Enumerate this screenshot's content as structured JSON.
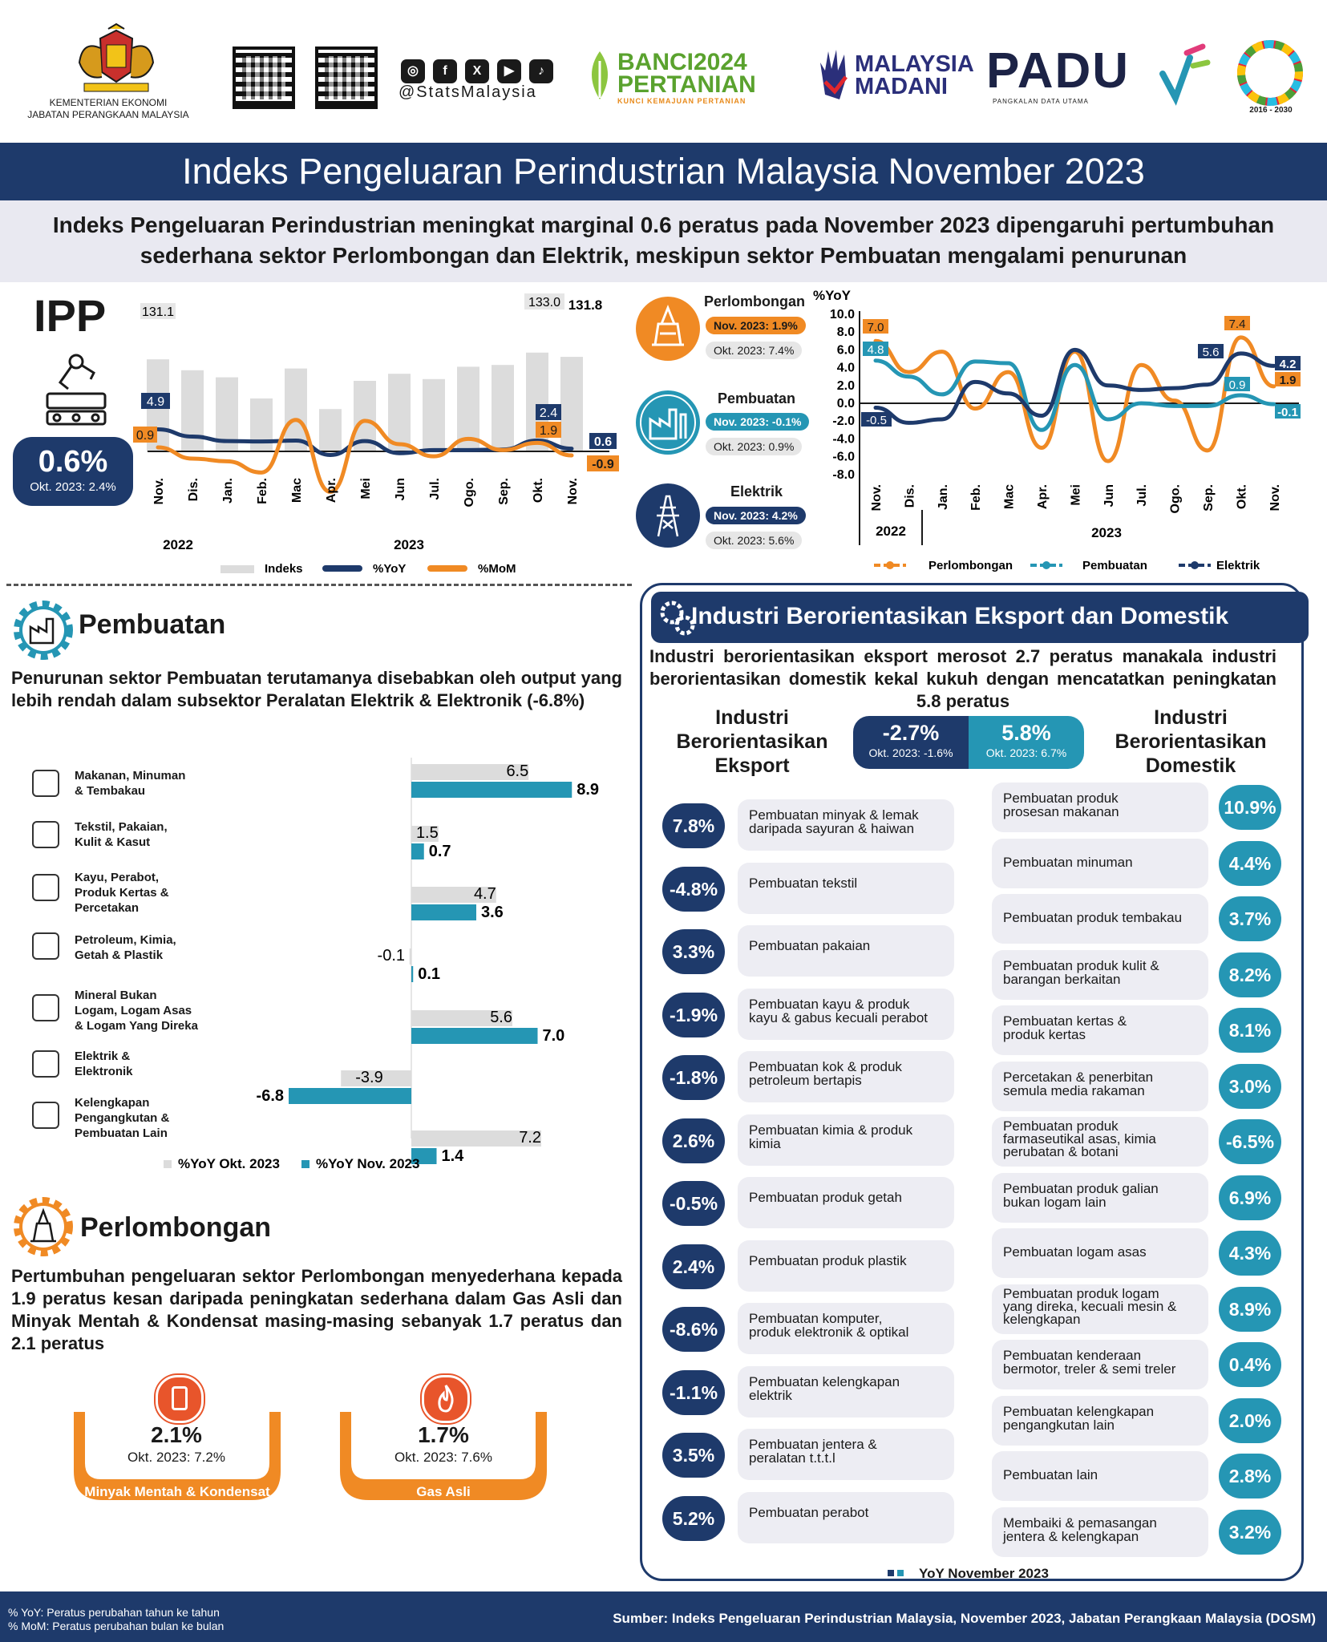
{
  "header": {
    "ministry_line1": "KEMENTERIAN EKONOMI",
    "ministry_line2": "JABATAN PERANGKAAN MALAYSIA",
    "social_handle": "@StatsMalaysia",
    "banci_line1": "BANCI2024",
    "banci_line2": "PERTANIAN",
    "banci_tag": "KUNCI KEMAJUAN PERTANIAN",
    "madani_line1": "MALAYSIA",
    "madani_line2": "MADANI",
    "padu": "PADU",
    "padu_tag": "PANGKALAN DATA UTAMA",
    "sdg_years": "2016 - 2030"
  },
  "title": "Indeks Pengeluaran Perindustrian Malaysia November 2023",
  "subtitle_line1": "Indeks Pengeluaran Perindustrian meningkat marginal 0.6 peratus pada November 2023 dipengaruhi pertumbuhan",
  "subtitle_line2": "sederhana sektor Perlombongan dan Elektrik, meskipun sektor Pembuatan mengalami penurunan",
  "ipp": {
    "label": "IPP",
    "value": "0.6%",
    "prev": "Okt. 2023: 2.4%"
  },
  "sectors": {
    "perlombongan": {
      "name": "Perlombongan",
      "nov": "Nov. 2023: 1.9%",
      "okt": "Okt. 2023: 7.4%"
    },
    "pembuatan": {
      "name": "Pembuatan",
      "nov": "Nov. 2023: -0.1%",
      "okt": "Okt. 2023: 0.9%"
    },
    "elektrik": {
      "name": "Elektrik",
      "nov": "Nov. 2023: 4.2%",
      "okt": "Okt. 2023: 5.6%"
    }
  },
  "colors": {
    "navy": "#1e3a6b",
    "teal": "#2596b4",
    "orange": "#f08a24",
    "grey": "#dcdcdc"
  },
  "chart_data": [
    {
      "type": "bar",
      "title": "IPP",
      "categories": [
        "Nov.",
        "Dis.",
        "Jan.",
        "Feb.",
        "Mac",
        "Apr.",
        "Mei",
        "Jun",
        "Jul.",
        "Ogo.",
        "Sep.",
        "Okt.",
        "Nov."
      ],
      "year_labels": [
        "2022",
        "2023"
      ],
      "series": [
        {
          "name": "Indeks",
          "type": "bar",
          "values": [
            131.1,
            128.0,
            126.0,
            120.0,
            128.5,
            117.0,
            125.0,
            127.0,
            125.5,
            129.0,
            129.5,
            133.0,
            131.8
          ]
        },
        {
          "name": "%YoY",
          "type": "line",
          "values": [
            4.9,
            3.3,
            2.3,
            2.2,
            2.4,
            -0.8,
            2.3,
            -0.4,
            0.3,
            0.3,
            0.4,
            2.4,
            0.6
          ]
        },
        {
          "name": "%MoM",
          "type": "line",
          "values": [
            0.9,
            -1.6,
            -2.2,
            -4.7,
            7.0,
            -9.0,
            6.8,
            1.6,
            -1.1,
            2.8,
            0.3,
            1.9,
            -0.9
          ]
        }
      ],
      "labels": {
        "indeks_first": "131.1",
        "indeks_okt": "133.0",
        "indeks_nov": "131.8",
        "yoy_first": "4.9",
        "yoy_okt": "2.4",
        "yoy_nov": "0.6",
        "mom_first": "0.9",
        "mom_okt": "1.9",
        "mom_nov": "-0.9"
      },
      "legend": [
        "Indeks",
        "%YoY",
        "%MoM"
      ]
    },
    {
      "type": "line",
      "ylabel": "%YoY",
      "ylim": [
        -8.0,
        10.0
      ],
      "yticks": [
        "10.0",
        "8.0",
        "6.0",
        "4.0",
        "2.0",
        "0.0",
        "-2.0",
        "-4.0",
        "-6.0",
        "-8.0"
      ],
      "categories": [
        "Nov.",
        "Dis.",
        "Jan.",
        "Feb.",
        "Mac",
        "Apr.",
        "Mei",
        "Jun",
        "Jul.",
        "Ogo.",
        "Sep.",
        "Okt.",
        "Nov."
      ],
      "year_labels": [
        "2022",
        "2023"
      ],
      "series": [
        {
          "name": "Perlombongan",
          "values": [
            7.0,
            3.5,
            5.8,
            -0.6,
            3.5,
            -5.0,
            5.8,
            -6.5,
            4.3,
            0.3,
            -5.3,
            7.4,
            1.9
          ]
        },
        {
          "name": "Pembuatan",
          "values": [
            4.8,
            3.0,
            1.0,
            4.7,
            4.5,
            -3.0,
            4.3,
            -1.8,
            0.0,
            -0.3,
            -0.3,
            0.9,
            -0.1
          ]
        },
        {
          "name": "Elektrik",
          "values": [
            -0.5,
            -2.2,
            -1.8,
            2.4,
            1.1,
            -1.4,
            6.0,
            2.0,
            1.5,
            1.7,
            2.1,
            5.6,
            4.2
          ]
        }
      ],
      "labels": {
        "perl_first": "7.0",
        "perl_okt": "7.4",
        "perl_nov": "1.9",
        "pemb_first": "4.8",
        "pemb_okt": "0.9",
        "pemb_nov": "-0.1",
        "elek_first": "-0.5",
        "elek_okt": "5.6",
        "elek_nov": "4.2"
      },
      "legend": [
        "Perlombongan",
        "Pembuatan",
        "Elektrik"
      ]
    },
    {
      "type": "bar",
      "orientation": "horizontal",
      "categories": [
        "Makanan, Minuman & Tembakau",
        "Tekstil, Pakaian, Kulit & Kasut",
        "Kayu, Perabot, Produk Kertas & Percetakan",
        "Petroleum, Kimia, Getah & Plastik",
        "Mineral Bukan Logam, Logam Asas & Logam Yang Direka",
        "Elektrik & Elektronik",
        "Kelengkapan Pengangkutan & Pembuatan Lain"
      ],
      "series": [
        {
          "name": "%YoY Okt. 2023",
          "values": [
            6.5,
            1.5,
            4.7,
            -0.1,
            5.6,
            -3.9,
            7.2
          ]
        },
        {
          "name": "%YoY Nov. 2023",
          "values": [
            8.9,
            0.7,
            3.6,
            0.1,
            7.0,
            -6.8,
            1.4
          ]
        }
      ]
    }
  ],
  "pembuatan_section": {
    "title": "Pembuatan",
    "para": "Penurunan sektor Pembuatan terutamanya disebabkan oleh output yang lebih rendah dalam subsektor Peralatan Elektrik & Elektronik (-6.8%)",
    "cats": [
      [
        "Makanan, Minuman",
        "& Tembakau"
      ],
      [
        "Tekstil, Pakaian,",
        "Kulit & Kasut"
      ],
      [
        "Kayu, Perabot,",
        "Produk Kertas &",
        "Percetakan"
      ],
      [
        "Petroleum, Kimia,",
        "Getah & Plastik"
      ],
      [
        "Mineral Bukan",
        "Logam, Logam Asas",
        "& Logam Yang Direka"
      ],
      [
        "Elektrik &",
        "Elektronik"
      ],
      [
        "Kelengkapan",
        "Pengangkutan &",
        "Pembuatan Lain"
      ]
    ],
    "okt_labels": [
      "6.5",
      "1.5",
      "4.7",
      "-0.1",
      "5.6",
      "-3.9",
      "7.2"
    ],
    "nov_labels": [
      "8.9",
      "0.7",
      "3.6",
      "0.1",
      "7.0",
      "-6.8",
      "1.4"
    ],
    "legend_okt": "%YoY Okt. 2023",
    "legend_nov": "%YoY Nov. 2023"
  },
  "perlombongan_section": {
    "title": "Perlombongan",
    "para": "Pertumbuhan pengeluaran sektor Perlombongan menyederhana kepada 1.9 peratus kesan daripada peningkatan sederhana dalam Gas Asli dan Minyak Mentah & Kondensat masing-masing sebanyak 1.7 peratus dan 2.1 peratus",
    "minyak": {
      "value": "2.1%",
      "prev": "Okt. 2023: 7.2%",
      "label": "Minyak Mentah & Kondensat"
    },
    "gas": {
      "value": "1.7%",
      "prev": "Okt. 2023: 7.6%",
      "label": "Gas Asli"
    }
  },
  "industri": {
    "title": "Industri Berorientasikan Eksport dan Domestik",
    "para": "Industri berorientasikan eksport merosot 2.7 peratus manakala industri berorientasikan domestik kekal kukuh dengan mencatatkan peningkatan 5.8 peratus",
    "eksport_heading": [
      "Industri",
      "Berorientasikan",
      "Eksport"
    ],
    "domestik_heading": [
      "Industri",
      "Berorientasikan",
      "Domestik"
    ],
    "eksport_value": "-2.7%",
    "eksport_prev": "Okt. 2023: -1.6%",
    "domestik_value": "5.8%",
    "domestik_prev": "Okt. 2023: 6.7%",
    "eksport_items": [
      {
        "v": "7.8%",
        "l": [
          "Pembuatan minyak & lemak",
          "daripada sayuran & haiwan"
        ]
      },
      {
        "v": "-4.8%",
        "l": [
          "Pembuatan tekstil"
        ]
      },
      {
        "v": "3.3%",
        "l": [
          "Pembuatan pakaian"
        ]
      },
      {
        "v": "-1.9%",
        "l": [
          "Pembuatan kayu & produk",
          "kayu & gabus kecuali perabot"
        ]
      },
      {
        "v": "-1.8%",
        "l": [
          "Pembuatan kok & produk",
          "petroleum bertapis"
        ]
      },
      {
        "v": "2.6%",
        "l": [
          "Pembuatan kimia & produk",
          "kimia"
        ]
      },
      {
        "v": "-0.5%",
        "l": [
          "Pembuatan produk getah"
        ]
      },
      {
        "v": "2.4%",
        "l": [
          "Pembuatan produk plastik"
        ]
      },
      {
        "v": "-8.6%",
        "l": [
          "Pembuatan komputer,",
          "produk elektronik & optikal"
        ]
      },
      {
        "v": "-1.1%",
        "l": [
          "Pembuatan kelengkapan",
          "elektrik"
        ]
      },
      {
        "v": "3.5%",
        "l": [
          "Pembuatan jentera &",
          "peralatan t.t.t.l"
        ]
      },
      {
        "v": "5.2%",
        "l": [
          "Pembuatan perabot"
        ]
      }
    ],
    "domestik_items": [
      {
        "v": "10.9%",
        "l": [
          "Pembuatan produk",
          "prosesan makanan"
        ]
      },
      {
        "v": "4.4%",
        "l": [
          "Pembuatan minuman"
        ]
      },
      {
        "v": "3.7%",
        "l": [
          "Pembuatan produk tembakau"
        ]
      },
      {
        "v": "8.2%",
        "l": [
          "Pembuatan produk kulit &",
          "barangan berkaitan"
        ]
      },
      {
        "v": "8.1%",
        "l": [
          "Pembuatan kertas &",
          "produk kertas"
        ]
      },
      {
        "v": "3.0%",
        "l": [
          "Percetakan & penerbitan",
          "semula media rakaman"
        ]
      },
      {
        "v": "-6.5%",
        "l": [
          "Pembuatan produk",
          "farmaseutikal asas, kimia",
          "perubatan & botani"
        ]
      },
      {
        "v": "6.9%",
        "l": [
          "Pembuatan produk galian",
          "bukan logam lain"
        ]
      },
      {
        "v": "4.3%",
        "l": [
          "Pembuatan logam asas"
        ]
      },
      {
        "v": "8.9%",
        "l": [
          "Pembuatan produk logam",
          "yang direka, kecuali mesin &",
          "kelengkapan"
        ]
      },
      {
        "v": "0.4%",
        "l": [
          "Pembuatan kenderaan",
          "bermotor, treler & semi treler"
        ]
      },
      {
        "v": "2.0%",
        "l": [
          "Pembuatan kelengkapan",
          "pengangkutan lain"
        ]
      },
      {
        "v": "2.8%",
        "l": [
          "Pembuatan lain"
        ]
      },
      {
        "v": "3.2%",
        "l": [
          "Membaiki & pemasangan",
          "jentera & kelengkapan"
        ]
      }
    ],
    "legend": "YoY November 2023"
  },
  "footer": {
    "note1": "% YoY: Peratus perubahan tahun ke tahun",
    "note2": "% MoM: Peratus perubahan bulan ke bulan",
    "source": "Sumber: Indeks Pengeluaran Perindustrian Malaysia, November 2023, Jabatan Perangkaan Malaysia (DOSM)"
  }
}
